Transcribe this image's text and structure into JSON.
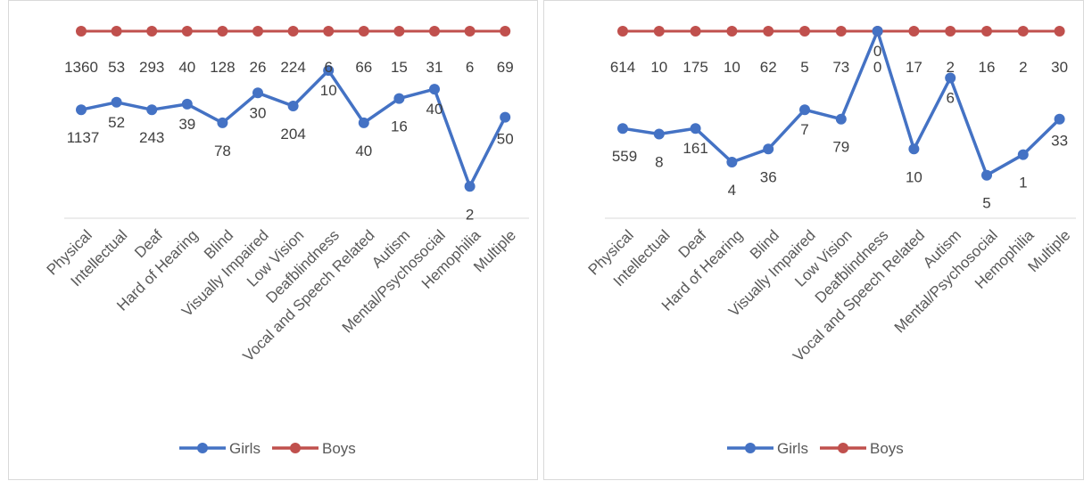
{
  "chart_data": [
    {
      "type": "line",
      "categories": [
        "Physical",
        "Intellectual",
        "Deaf",
        "Hard of Hearing",
        "Blind",
        "Visually Impaired",
        "Low Vision",
        "Deafblindness",
        "Vocal and Speech Related",
        "Autism",
        "Mental/Psychosocial",
        "Hemophilia",
        "Multiple"
      ],
      "series": [
        {
          "name": "Girls",
          "color": "#4472c4",
          "values": [
            1137,
            52,
            243,
            39,
            78,
            30,
            204,
            10,
            40,
            16,
            40,
            2,
            50
          ]
        },
        {
          "name": "Boys",
          "color": "#c0504d",
          "values": [
            1360,
            53,
            293,
            40,
            128,
            26,
            224,
            6,
            66,
            15,
            31,
            6,
            69
          ]
        }
      ],
      "girls_relative_level": [
        0.58,
        0.62,
        0.58,
        0.61,
        0.51,
        0.67,
        0.6,
        0.79,
        0.51,
        0.64,
        0.69,
        0.17,
        0.54
      ],
      "grid": false,
      "legend_position": "bottom"
    },
    {
      "type": "line",
      "categories": [
        "Physical",
        "Intellectual",
        "Deaf",
        "Hard of Hearing",
        "Blind",
        "Visually Impaired",
        "Low Vision",
        "Deafblindness",
        "Vocal and Speech Related",
        "Autism",
        "Mental/Psychosocial",
        "Hemophilia",
        "Multiple"
      ],
      "series": [
        {
          "name": "Girls",
          "color": "#4472c4",
          "values": [
            559,
            8,
            161,
            4,
            36,
            7,
            79,
            0,
            10,
            6,
            5,
            1,
            33
          ]
        },
        {
          "name": "Boys",
          "color": "#c0504d",
          "values": [
            614,
            10,
            175,
            10,
            62,
            5,
            73,
            0,
            17,
            2,
            16,
            2,
            30
          ]
        }
      ],
      "girls_relative_level": [
        0.48,
        0.45,
        0.48,
        0.3,
        0.37,
        0.58,
        0.53,
        1.0,
        0.37,
        0.75,
        0.23,
        0.34,
        0.53
      ],
      "grid": false,
      "legend_position": "bottom"
    }
  ]
}
